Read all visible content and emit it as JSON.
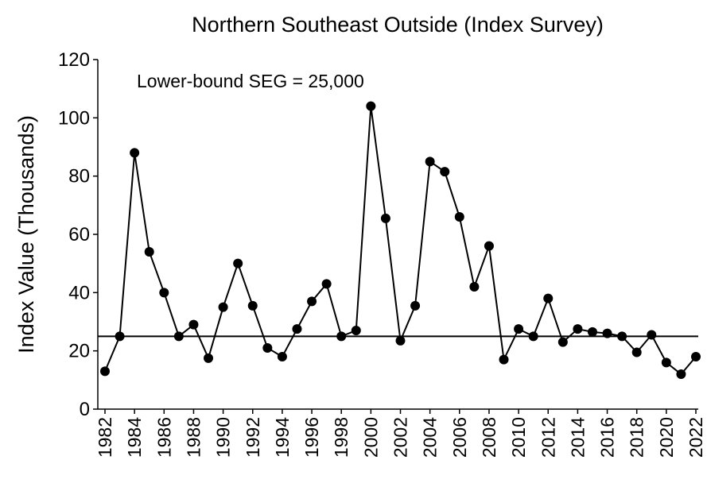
{
  "chart_data": {
    "type": "line",
    "title": "Northern Southeast Outside (Index Survey)",
    "y_label": "Index Value (Thousands)",
    "annotation": "Lower-bound SEG = 25,000",
    "seg": 25,
    "x": [
      1982,
      1983,
      1984,
      1985,
      1986,
      1987,
      1988,
      1989,
      1990,
      1991,
      1992,
      1993,
      1994,
      1995,
      1996,
      1997,
      1998,
      1999,
      2000,
      2001,
      2002,
      2003,
      2004,
      2005,
      2006,
      2007,
      2008,
      2009,
      2010,
      2011,
      2012,
      2013,
      2014,
      2015,
      2016,
      2017,
      2018,
      2019,
      2020,
      2021,
      2022
    ],
    "series": [
      {
        "color": "#000000",
        "values": [
          13,
          25,
          88,
          54,
          40,
          25,
          29,
          17.5,
          35,
          50,
          35.5,
          21,
          18,
          27.5,
          37,
          43,
          25,
          27,
          104,
          65.5,
          23.5,
          35.5,
          85,
          81.5,
          66,
          42,
          56,
          17,
          27.5,
          25,
          38,
          23,
          27.5,
          26.5,
          26,
          25,
          19.5,
          25.5,
          16,
          12,
          18
        ]
      }
    ],
    "xlim": [
      1982,
      2022
    ],
    "xticks": [
      1982,
      1984,
      1986,
      1988,
      1990,
      1992,
      1994,
      1996,
      1998,
      2000,
      2002,
      2004,
      2006,
      2008,
      2010,
      2012,
      2014,
      2016,
      2018,
      2020,
      2022
    ],
    "ylim": [
      0,
      120
    ],
    "yticks": [
      0,
      20,
      40,
      60,
      80,
      100,
      120
    ]
  }
}
